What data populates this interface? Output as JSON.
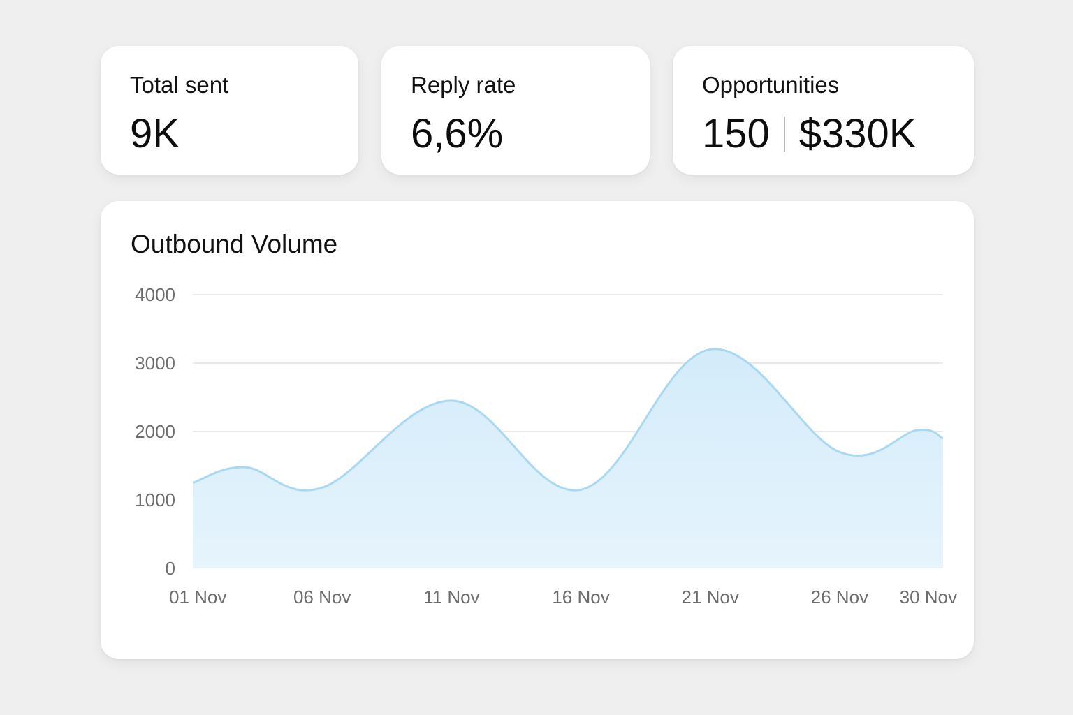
{
  "stats": {
    "total_sent": {
      "label": "Total sent",
      "value": "9K"
    },
    "reply_rate": {
      "label": "Reply rate",
      "value": "6,6%"
    },
    "opportunities": {
      "label": "Opportunities",
      "count": "150",
      "amount": "$330K"
    }
  },
  "colors": {
    "area_fill": "#d3ecfa",
    "line": "#a9d8f2",
    "grid": "#e3e3e3"
  },
  "chart_data": {
    "type": "area",
    "title": "Outbound Volume",
    "xlabel": "",
    "ylabel": "",
    "ylim": [
      0,
      4000
    ],
    "y_ticks": [
      "0",
      "1000",
      "2000",
      "3000",
      "4000"
    ],
    "x_ticks": [
      "01 Nov",
      "06 Nov",
      "11 Nov",
      "16 Nov",
      "21 Nov",
      "26 Nov",
      "30 Nov"
    ],
    "x": [
      "01 Nov",
      "03 Nov",
      "06 Nov",
      "11 Nov",
      "16 Nov",
      "21 Nov",
      "26 Nov",
      "29 Nov",
      "30 Nov"
    ],
    "values": [
      1250,
      1480,
      1180,
      2450,
      1150,
      3200,
      1700,
      2020,
      1900
    ],
    "grid": true,
    "legend": "none"
  }
}
